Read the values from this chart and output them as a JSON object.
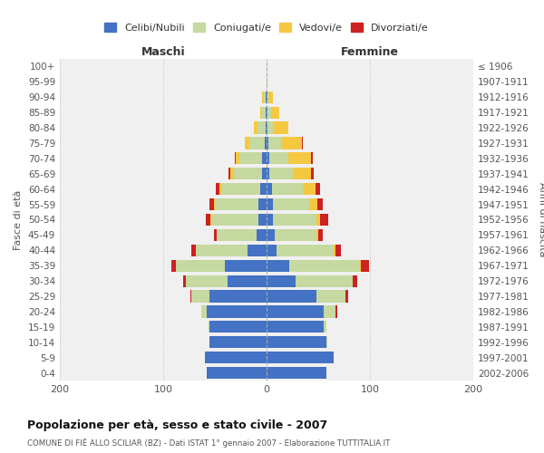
{
  "age_groups": [
    "0-4",
    "5-9",
    "10-14",
    "15-19",
    "20-24",
    "25-29",
    "30-34",
    "35-39",
    "40-44",
    "45-49",
    "50-54",
    "55-59",
    "60-64",
    "65-69",
    "70-74",
    "75-79",
    "80-84",
    "85-89",
    "90-94",
    "95-99",
    "100+"
  ],
  "birth_years": [
    "2002-2006",
    "1997-2001",
    "1992-1996",
    "1987-1991",
    "1982-1986",
    "1977-1981",
    "1972-1976",
    "1967-1971",
    "1962-1966",
    "1957-1961",
    "1952-1956",
    "1947-1951",
    "1942-1946",
    "1937-1941",
    "1932-1936",
    "1927-1931",
    "1922-1926",
    "1917-1921",
    "1912-1916",
    "1907-1911",
    "≤ 1906"
  ],
  "male": {
    "celibi": [
      58,
      60,
      55,
      55,
      58,
      55,
      38,
      40,
      18,
      10,
      8,
      8,
      6,
      4,
      4,
      2,
      1,
      1,
      1,
      0,
      0
    ],
    "coniugati": [
      0,
      0,
      0,
      1,
      5,
      18,
      40,
      48,
      50,
      38,
      45,
      42,
      38,
      28,
      22,
      15,
      8,
      3,
      2,
      0,
      0
    ],
    "vedovi": [
      0,
      0,
      0,
      0,
      0,
      0,
      0,
      0,
      0,
      0,
      1,
      1,
      2,
      3,
      4,
      4,
      3,
      2,
      1,
      0,
      0
    ],
    "divorziati": [
      0,
      0,
      0,
      0,
      0,
      1,
      3,
      4,
      5,
      3,
      5,
      4,
      3,
      2,
      1,
      0,
      0,
      0,
      0,
      0,
      0
    ]
  },
  "female": {
    "nubili": [
      58,
      65,
      58,
      55,
      55,
      48,
      28,
      22,
      10,
      8,
      6,
      6,
      5,
      3,
      3,
      2,
      1,
      1,
      1,
      0,
      0
    ],
    "coniugate": [
      0,
      0,
      1,
      3,
      12,
      28,
      55,
      68,
      55,
      40,
      42,
      35,
      30,
      22,
      18,
      12,
      5,
      3,
      1,
      0,
      0
    ],
    "vedove": [
      0,
      0,
      0,
      0,
      0,
      0,
      0,
      1,
      2,
      2,
      4,
      8,
      12,
      18,
      22,
      20,
      15,
      8,
      4,
      1,
      0
    ],
    "divorziate": [
      0,
      0,
      0,
      0,
      1,
      3,
      5,
      8,
      5,
      4,
      8,
      5,
      5,
      3,
      2,
      1,
      0,
      0,
      0,
      0,
      0
    ]
  },
  "colors": {
    "celibi_nubili": "#4472C4",
    "coniugati": "#C5D9A0",
    "vedovi": "#F5C842",
    "divorziati": "#CC2222"
  },
  "xlim": 200,
  "title": "Popolazione per età, sesso e stato civile - 2007",
  "subtitle": "COMUNE DI FIÈ ALLO SCILIAR (BZ) - Dati ISTAT 1° gennaio 2007 - Elaborazione TUTTITALIA.IT",
  "ylabel_left": "Fasce di età",
  "ylabel_right": "Anni di nascita",
  "xlabel_maschi": "Maschi",
  "xlabel_femmine": "Femmine",
  "legend_labels": [
    "Celibi/Nubili",
    "Coniugati/e",
    "Vedovi/e",
    "Divorziati/e"
  ],
  "background_color": "#ffffff",
  "plot_bg_color": "#f0f0f0",
  "grid_color": "#cccccc"
}
